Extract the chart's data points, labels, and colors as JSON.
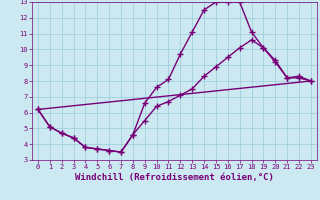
{
  "title": "",
  "xlabel": "Windchill (Refroidissement éolien,°C)",
  "ylabel": "",
  "bg_color": "#cce8f0",
  "line_color": "#770077",
  "grid_color": "#99ccdd",
  "xlim": [
    -0.5,
    23.5
  ],
  "ylim": [
    3,
    13
  ],
  "xticks": [
    0,
    1,
    2,
    3,
    4,
    5,
    6,
    7,
    8,
    9,
    10,
    11,
    12,
    13,
    14,
    15,
    16,
    17,
    18,
    19,
    20,
    21,
    22,
    23
  ],
  "yticks": [
    3,
    4,
    5,
    6,
    7,
    8,
    9,
    10,
    11,
    12,
    13
  ],
  "line1_x": [
    0,
    1,
    2,
    3,
    4,
    5,
    6,
    7,
    8,
    9,
    10,
    11,
    12,
    13,
    14,
    15,
    16,
    17,
    18,
    19,
    20,
    21,
    22,
    23
  ],
  "line1_y": [
    6.2,
    5.1,
    4.7,
    4.4,
    3.8,
    3.7,
    3.6,
    3.5,
    4.6,
    5.5,
    6.4,
    6.7,
    7.1,
    7.5,
    8.3,
    8.9,
    9.5,
    10.1,
    10.6,
    10.1,
    9.2,
    8.2,
    8.2,
    8.0
  ],
  "line2_x": [
    0,
    1,
    2,
    3,
    4,
    5,
    6,
    7,
    8,
    9,
    10,
    11,
    12,
    13,
    14,
    15,
    16,
    17,
    18,
    19,
    20,
    21,
    22,
    23
  ],
  "line2_y": [
    6.2,
    5.1,
    4.7,
    4.4,
    3.8,
    3.7,
    3.6,
    3.5,
    4.6,
    6.6,
    7.6,
    8.1,
    9.7,
    11.1,
    12.5,
    13.0,
    13.0,
    13.0,
    11.1,
    10.1,
    9.3,
    8.2,
    8.3,
    8.0
  ],
  "line3_x": [
    0,
    23
  ],
  "line3_y": [
    6.2,
    8.0
  ],
  "marker": "+",
  "markersize": 4,
  "linewidth": 1.0,
  "tick_fontsize": 5.0,
  "xlabel_fontsize": 6.5,
  "axis_label_color": "#770077",
  "tick_color": "#770077"
}
